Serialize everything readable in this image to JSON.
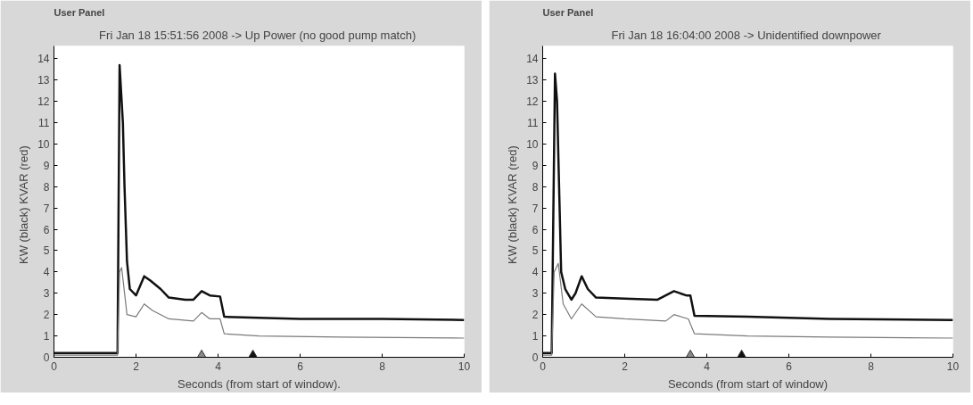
{
  "chart_data": [
    {
      "type": "line",
      "title": "Fri Jan 18 15:51:56 2008  -> Up Power (no good pump match)",
      "xlabel": "Seconds (from start of window).",
      "ylabel": "KW (black)   KVAR (red)",
      "annotations": [
        "User Panel"
      ],
      "xlim": [
        0,
        10
      ],
      "ylim": [
        0,
        14.6
      ],
      "xticks": [
        0,
        2,
        4,
        6,
        8,
        10
      ],
      "yticks": [
        0,
        1,
        2,
        3,
        4,
        5,
        6,
        7,
        8,
        9,
        10,
        11,
        12,
        13,
        14
      ],
      "grid": false,
      "marker": "none",
      "line_style": "solid",
      "series": [
        {
          "color": "#111111",
          "x": [
            0,
            1.55,
            1.6,
            1.68,
            1.72,
            1.78,
            1.85,
            2.0,
            2.2,
            2.35,
            2.6,
            2.8,
            3.2,
            3.4,
            3.6,
            3.8,
            4.05,
            4.15,
            5,
            6,
            8,
            10
          ],
          "values": [
            0.2,
            0.2,
            13.7,
            11,
            8,
            4.5,
            3.2,
            2.9,
            3.8,
            3.6,
            3.2,
            2.8,
            2.7,
            2.7,
            3.1,
            2.9,
            2.85,
            1.9,
            1.85,
            1.8,
            1.8,
            1.75
          ]
        },
        {
          "color": "#7a7a7a",
          "x": [
            0,
            1.55,
            1.6,
            1.65,
            1.78,
            2.0,
            2.2,
            2.4,
            2.8,
            3.4,
            3.6,
            3.8,
            4.05,
            4.15,
            5,
            7,
            10
          ],
          "values": [
            0.1,
            0.1,
            4.0,
            4.2,
            2.0,
            1.9,
            2.5,
            2.2,
            1.8,
            1.7,
            2.1,
            1.8,
            1.8,
            1.1,
            1.0,
            0.95,
            0.9
          ]
        },
        {
          "type": "scatter",
          "marker": "triangle",
          "color": "#8a8a8a",
          "x": [
            3.6
          ],
          "values": [
            0
          ]
        },
        {
          "type": "scatter",
          "marker": "triangle",
          "color": "#111111",
          "x": [
            4.85
          ],
          "values": [
            0
          ]
        }
      ]
    },
    {
      "type": "line",
      "title": "Fri Jan 18 16:04:00 2008  -> Unidentified downpower",
      "xlabel": "Seconds (from start of window)",
      "ylabel": "KW (black)   KVAR (red)",
      "annotations": [
        "User Panel"
      ],
      "xlim": [
        0,
        10
      ],
      "ylim": [
        0,
        14.6
      ],
      "xticks": [
        0,
        2,
        4,
        6,
        8,
        10
      ],
      "yticks": [
        0,
        1,
        2,
        3,
        4,
        5,
        6,
        7,
        8,
        9,
        10,
        11,
        12,
        13,
        14
      ],
      "grid": false,
      "marker": "none",
      "line_style": "solid",
      "series": [
        {
          "color": "#111111",
          "x": [
            0,
            0.22,
            0.3,
            0.35,
            0.4,
            0.45,
            0.55,
            0.7,
            0.8,
            0.95,
            1.1,
            1.3,
            2.0,
            2.8,
            3.2,
            3.5,
            3.6,
            3.7,
            5,
            7,
            10
          ],
          "values": [
            0.2,
            0.2,
            13.3,
            12,
            8,
            4,
            3.2,
            2.7,
            3.0,
            3.8,
            3.2,
            2.8,
            2.75,
            2.7,
            3.1,
            2.9,
            2.9,
            1.95,
            1.9,
            1.8,
            1.75
          ]
        },
        {
          "color": "#7a7a7a",
          "x": [
            0,
            0.22,
            0.28,
            0.38,
            0.5,
            0.7,
            0.95,
            1.3,
            2.0,
            3.0,
            3.2,
            3.55,
            3.7,
            5,
            7,
            10
          ],
          "values": [
            0.1,
            0.1,
            4.0,
            4.4,
            2.5,
            1.8,
            2.5,
            1.9,
            1.8,
            1.7,
            2.0,
            1.8,
            1.1,
            1.0,
            0.95,
            0.9
          ]
        },
        {
          "type": "scatter",
          "marker": "triangle",
          "color": "#8a8a8a",
          "x": [
            3.6
          ],
          "values": [
            0
          ]
        },
        {
          "type": "scatter",
          "marker": "triangle",
          "color": "#111111",
          "x": [
            4.85
          ],
          "values": [
            0
          ]
        }
      ]
    }
  ]
}
